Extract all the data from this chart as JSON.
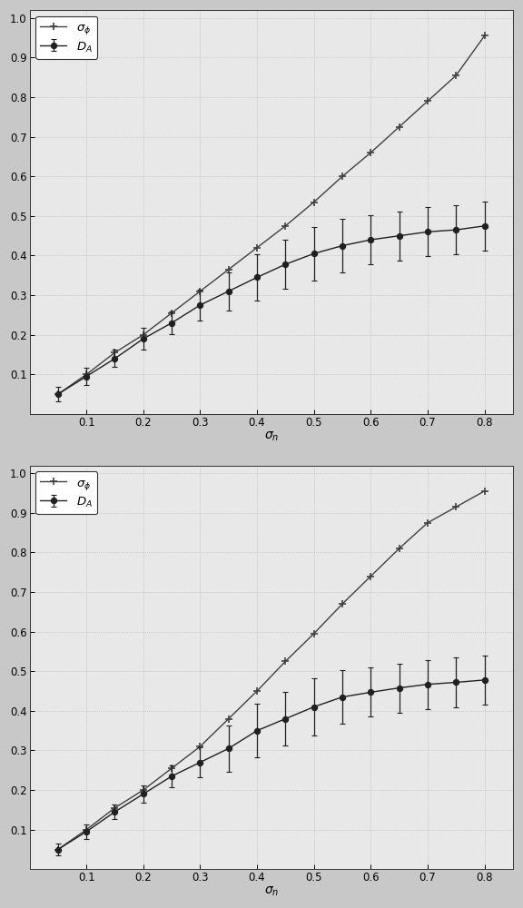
{
  "x": [
    0.05,
    0.1,
    0.15,
    0.2,
    0.25,
    0.3,
    0.35,
    0.4,
    0.45,
    0.5,
    0.55,
    0.6,
    0.65,
    0.7,
    0.75,
    0.8
  ],
  "sigma_phi_1": [
    0.05,
    0.1,
    0.155,
    0.2,
    0.255,
    0.31,
    0.365,
    0.42,
    0.475,
    0.535,
    0.6,
    0.66,
    0.725,
    0.79,
    0.855,
    0.955
  ],
  "DA_1": [
    0.05,
    0.095,
    0.14,
    0.19,
    0.23,
    0.275,
    0.31,
    0.345,
    0.378,
    0.405,
    0.425,
    0.44,
    0.45,
    0.46,
    0.465,
    0.475
  ],
  "DA_err_1": [
    0.018,
    0.022,
    0.022,
    0.028,
    0.028,
    0.038,
    0.048,
    0.058,
    0.062,
    0.068,
    0.068,
    0.062,
    0.062,
    0.062,
    0.062,
    0.062
  ],
  "sigma_phi_2": [
    0.05,
    0.1,
    0.155,
    0.2,
    0.255,
    0.31,
    0.38,
    0.45,
    0.525,
    0.595,
    0.67,
    0.74,
    0.81,
    0.875,
    0.915,
    0.955
  ],
  "DA_2": [
    0.05,
    0.095,
    0.145,
    0.19,
    0.235,
    0.27,
    0.305,
    0.35,
    0.38,
    0.41,
    0.435,
    0.447,
    0.458,
    0.467,
    0.472,
    0.478
  ],
  "DA_err_2": [
    0.014,
    0.018,
    0.018,
    0.022,
    0.028,
    0.038,
    0.058,
    0.068,
    0.068,
    0.072,
    0.068,
    0.062,
    0.062,
    0.062,
    0.062,
    0.062
  ],
  "line_color": "#404040",
  "dot_color": "#202020",
  "bg_color": "#e8e8e8",
  "fig_color": "#c8c8c8",
  "xlim": [
    0,
    0.85
  ],
  "ylim": [
    0,
    1.0
  ],
  "xticks": [
    0.1,
    0.2,
    0.3,
    0.4,
    0.5,
    0.6,
    0.7,
    0.8
  ],
  "yticks": [
    0.1,
    0.2,
    0.3,
    0.4,
    0.5,
    0.6,
    0.7,
    0.8,
    0.9,
    1.0
  ]
}
